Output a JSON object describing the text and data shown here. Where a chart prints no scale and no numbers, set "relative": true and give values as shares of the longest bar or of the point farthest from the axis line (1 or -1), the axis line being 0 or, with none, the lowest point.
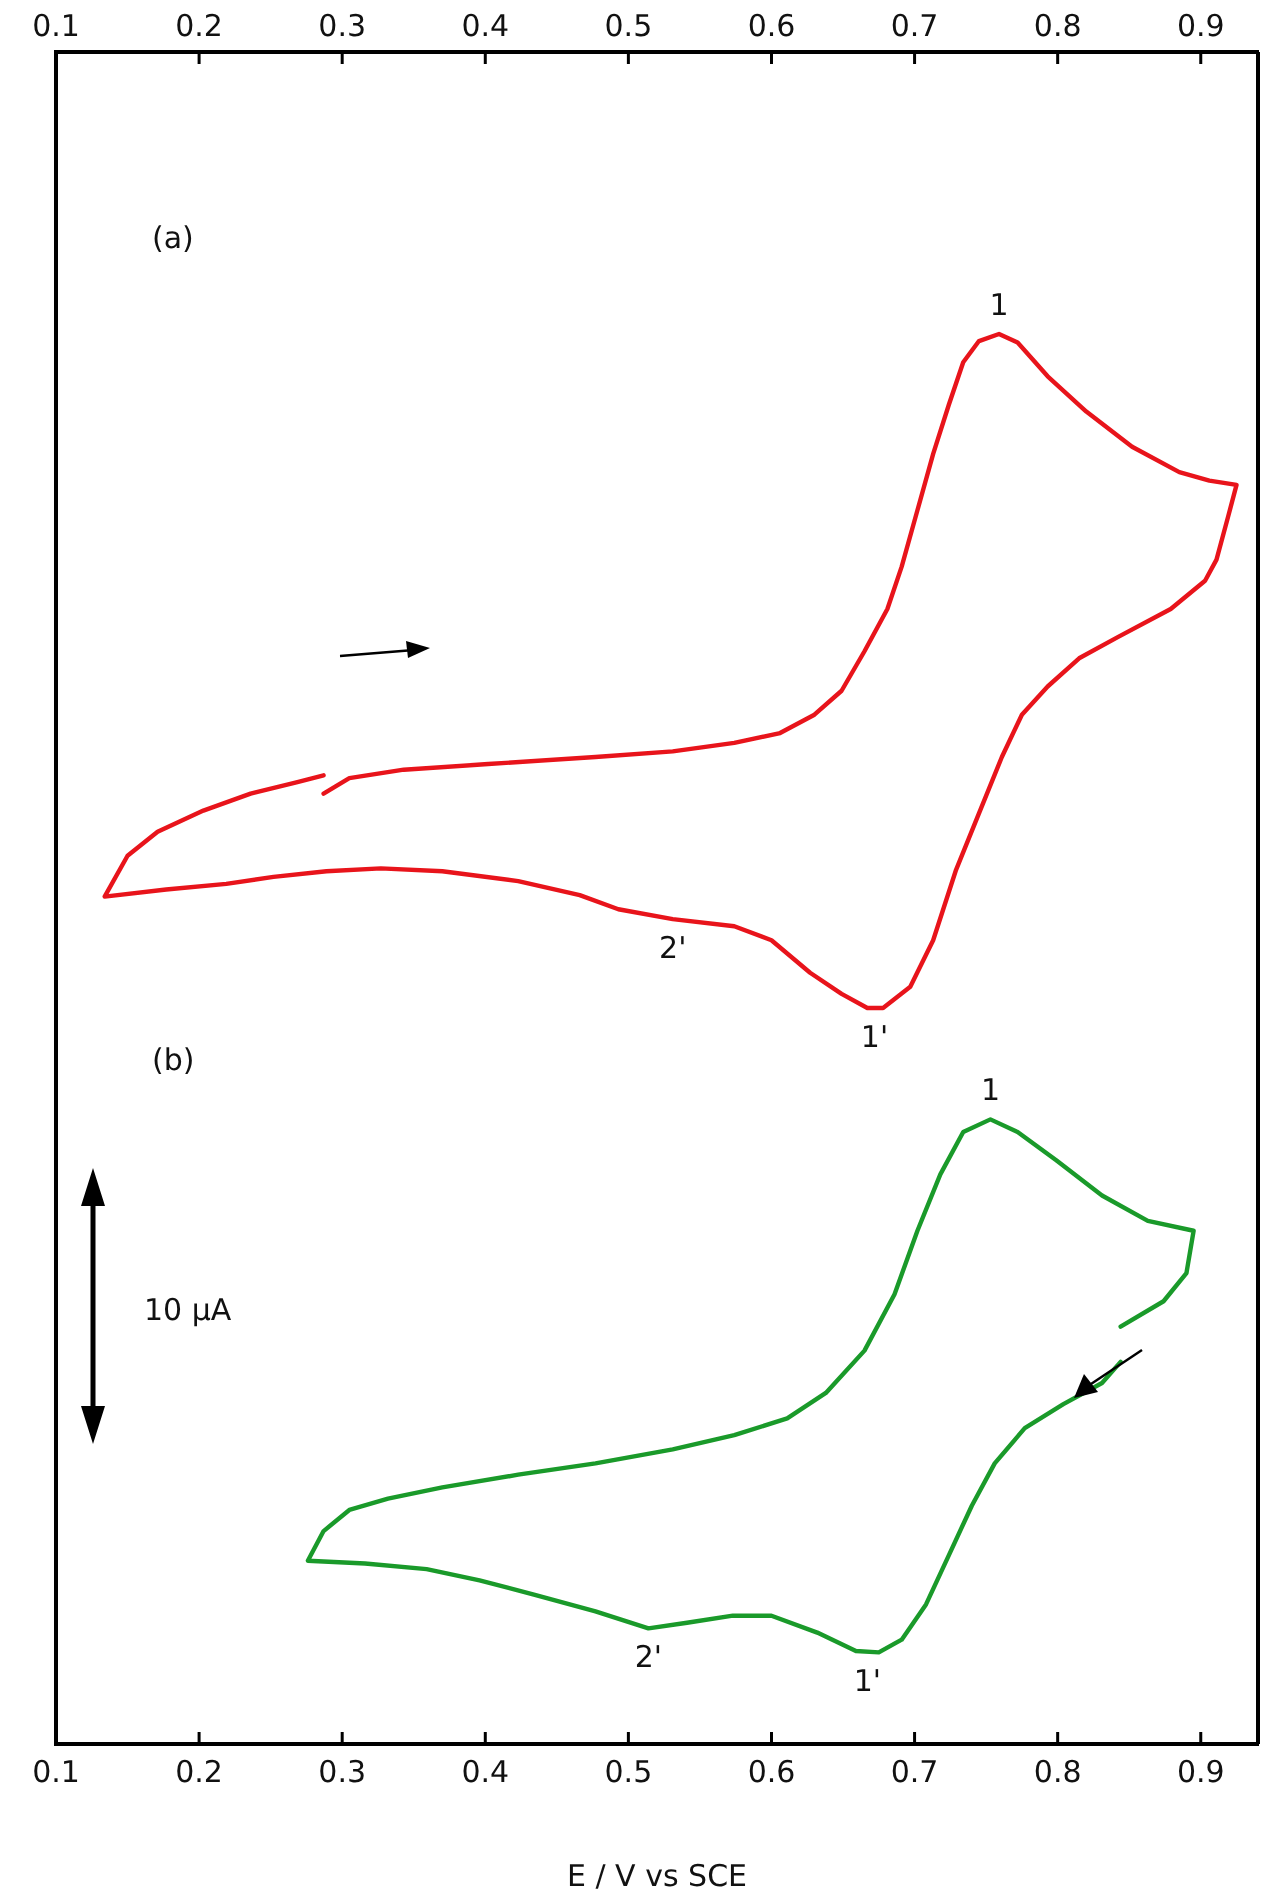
{
  "chart_data": {
    "type": "line",
    "relative": true,
    "xlabel": "E / V vs SCE",
    "xlim": [
      0.1,
      0.94
    ],
    "xticks": [
      0.1,
      0.2,
      0.3,
      0.4,
      0.5,
      0.6,
      0.7,
      0.8,
      0.9
    ],
    "x2lim": [
      0.1,
      0.94
    ],
    "x2ticks": [
      0.1,
      0.2,
      0.3,
      0.4,
      0.5,
      0.6,
      0.7,
      0.8,
      0.9
    ],
    "grid": false,
    "legend": false,
    "marker": "none",
    "line_style": "solid",
    "series": [
      {
        "color": "#e8141b",
        "x": [
          0.287,
          0.305,
          0.343,
          0.402,
          0.477,
          0.531,
          0.574,
          0.606,
          0.63,
          0.649,
          0.665,
          0.681,
          0.691,
          0.702,
          0.713,
          0.724,
          0.734,
          0.745,
          0.759,
          0.772,
          0.793,
          0.82,
          0.852,
          0.885,
          0.906,
          0.925,
          0.919,
          0.911,
          0.903,
          0.879,
          0.842,
          0.815,
          0.793,
          0.775,
          0.761,
          0.745,
          0.729,
          0.713,
          0.697,
          0.678,
          0.667,
          0.649,
          0.627,
          0.6,
          0.574,
          0.531,
          0.493,
          0.466,
          0.423,
          0.37,
          0.327,
          0.289,
          0.252,
          0.219,
          0.177,
          0.134,
          0.15,
          0.171,
          0.203,
          0.236,
          0.268,
          0.287
        ],
        "values": [
          0.674,
          0.685,
          0.691,
          0.695,
          0.7,
          0.704,
          0.71,
          0.717,
          0.73,
          0.747,
          0.775,
          0.805,
          0.835,
          0.875,
          0.915,
          0.95,
          0.98,
          0.995,
          1,
          0.994,
          0.97,
          0.945,
          0.92,
          0.902,
          0.896,
          0.893,
          0.87,
          0.84,
          0.825,
          0.805,
          0.785,
          0.77,
          0.75,
          0.73,
          0.7,
          0.66,
          0.62,
          0.57,
          0.537,
          0.522,
          0.522,
          0.532,
          0.547,
          0.57,
          0.58,
          0.585,
          0.592,
          0.602,
          0.612,
          0.619,
          0.621,
          0.619,
          0.615,
          0.61,
          0.606,
          0.601,
          0.63,
          0.647,
          0.662,
          0.674,
          0.682,
          0.687
        ]
      },
      {
        "color": "#1a9a2a",
        "x": [
          0.844,
          0.831,
          0.804,
          0.777,
          0.756,
          0.74,
          0.724,
          0.708,
          0.691,
          0.675,
          0.659,
          0.632,
          0.6,
          0.573,
          0.541,
          0.514,
          0.477,
          0.434,
          0.396,
          0.359,
          0.316,
          0.276,
          0.287,
          0.305,
          0.332,
          0.37,
          0.423,
          0.477,
          0.531,
          0.574,
          0.611,
          0.638,
          0.665,
          0.686,
          0.702,
          0.718,
          0.734,
          0.753,
          0.772,
          0.799,
          0.831,
          0.863,
          0.895,
          0.89,
          0.874,
          0.844
        ],
        "values": [
          0.271,
          0.256,
          0.241,
          0.224,
          0.199,
          0.169,
          0.134,
          0.099,
          0.074,
          0.065,
          0.066,
          0.079,
          0.091,
          0.091,
          0.086,
          0.082,
          0.094,
          0.106,
          0.116,
          0.124,
          0.128,
          0.13,
          0.151,
          0.166,
          0.174,
          0.182,
          0.191,
          0.199,
          0.209,
          0.219,
          0.231,
          0.249,
          0.279,
          0.319,
          0.364,
          0.404,
          0.434,
          0.443,
          0.434,
          0.414,
          0.389,
          0.371,
          0.364,
          0.334,
          0.314,
          0.296
        ]
      }
    ],
    "annotations": [
      "(a)",
      "(b)",
      "10 µA",
      {
        "text": "1",
        "x": 0.759,
        "y": 1
      },
      {
        "text": "1'",
        "x": 0.672,
        "y": 0.522
      },
      {
        "text": "2'",
        "x": 0.531,
        "y": 0.585
      },
      {
        "text": "1",
        "x": 0.753,
        "y": 0.443
      },
      {
        "text": "1'",
        "x": 0.667,
        "y": 0.065
      },
      {
        "text": "2'",
        "x": 0.514,
        "y": 0.082
      }
    ]
  }
}
